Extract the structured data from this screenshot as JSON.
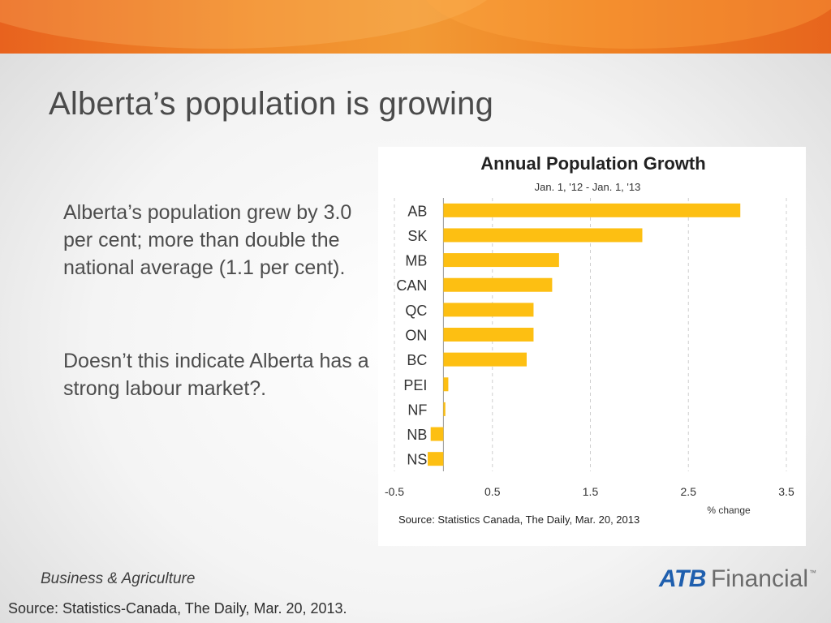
{
  "slide": {
    "title": "Alberta’s population is growing",
    "paragraph1": "Alberta’s population grew by 3.0 per cent; more than double the national average (1.1 per cent).",
    "paragraph2": "Doesn’t this indicate Alberta has a strong labour market?.",
    "footer_department": "Business & Agriculture",
    "footer_source": "Source: Statistics-Canada, The Daily, Mar. 20, 2013.",
    "logo": {
      "brand": "ATB",
      "name": "Financial",
      "mark": "™"
    }
  },
  "colors": {
    "banner": "#ef8424",
    "bar": "#fdbf12",
    "title_text": "#4b4b4b",
    "logo_blue": "#1f5fae"
  },
  "chart_data": {
    "type": "bar",
    "orientation": "horizontal",
    "title": "Annual Population Growth",
    "subtitle": "Jan. 1, '12 - Jan. 1, '13",
    "categories": [
      "AB",
      "SK",
      "MB",
      "CAN",
      "QC",
      "ON",
      "BC",
      "PEI",
      "NF",
      "NB",
      "NS"
    ],
    "values": [
      3.03,
      2.03,
      1.18,
      1.11,
      0.92,
      0.92,
      0.85,
      0.05,
      0.02,
      -0.13,
      -0.16
    ],
    "xlim": [
      -0.5,
      3.5
    ],
    "xticks": [
      -0.5,
      0.5,
      1.5,
      2.5,
      3.5
    ],
    "xtick_labels": [
      "-0.5",
      "0.5",
      "1.5",
      "2.5",
      "3.5"
    ],
    "xlabel": "% change",
    "ylabel": "",
    "grid": "vertical dashed",
    "source": "Source: Statistics Canada, The Daily, Mar. 20, 2013"
  }
}
